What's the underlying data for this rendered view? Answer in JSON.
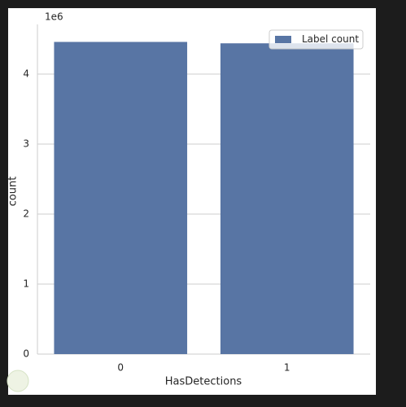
{
  "chart_data": {
    "type": "bar",
    "x_label": "HasDetections",
    "y_label": "count",
    "offset_label": "1e6",
    "categories": [
      "0",
      "1"
    ],
    "series": [
      {
        "name": "Label count",
        "color": "#5875a4",
        "values": [
          4.46,
          4.44
        ]
      }
    ],
    "ylim": [
      0,
      4.71
    ],
    "yticks": [
      0,
      1,
      2,
      3,
      4
    ],
    "grid": true,
    "legend": "upper right"
  }
}
